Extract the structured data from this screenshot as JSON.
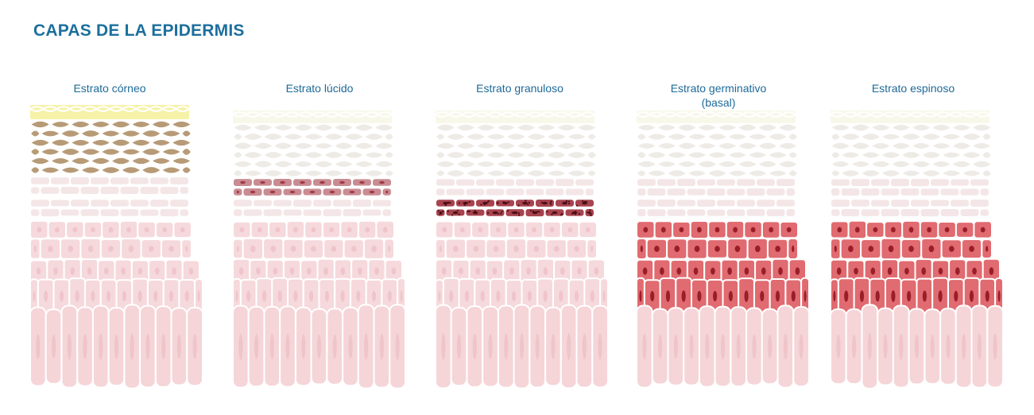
{
  "title": "CAPAS DE LA EPIDERMIS",
  "panels": [
    {
      "id": "corneo",
      "label_lines": [
        "Estrato córneo"
      ],
      "highlight": "corneo"
    },
    {
      "id": "lucido",
      "label_lines": [
        "Estrato lúcido"
      ],
      "highlight": "lucido"
    },
    {
      "id": "granuloso",
      "label_lines": [
        "Estrato granuloso"
      ],
      "highlight": "granuloso"
    },
    {
      "id": "germinativo",
      "label_lines": [
        "Estrato germinativo",
        "(basal)"
      ],
      "highlight": "germinativo"
    },
    {
      "id": "espinoso",
      "label_lines": [
        "Estrato espinoso"
      ],
      "highlight": "espinoso"
    }
  ],
  "colors": {
    "title": "#1c6f9c",
    "label": "#1e6a98",
    "surface_yellow": "#f6f2a8",
    "surface_faded": "#f8f8ea",
    "corneo_cells": "#b79b77",
    "faded_cells": "#eeebe6",
    "pale_cells": "#f4e6e7",
    "pink_cells": "#f6d9dc",
    "base_cells": "#f5d5d8",
    "lucido_cells": "#c98c92",
    "granuloso_cells": "#a8434f",
    "red_cells": "#e06b70",
    "nucleus_light": "#eec5ca",
    "nucleus_dark": "#9a1d2a"
  }
}
